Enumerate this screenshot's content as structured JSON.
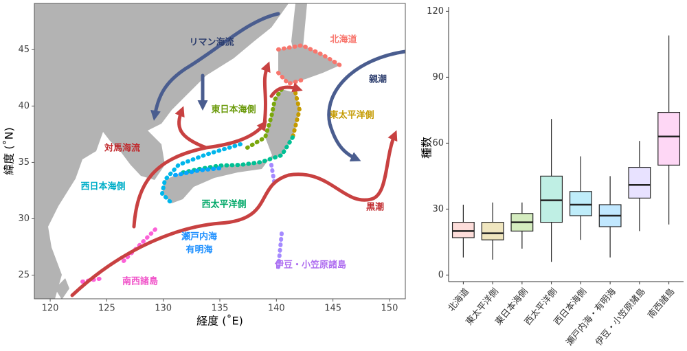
{
  "chart_data": [
    {
      "type": "map",
      "x_label": "経度 (˚E)",
      "y_label": "緯度 (˚N)",
      "xlim": [
        118.6,
        151.4
      ],
      "ylim": [
        22.9,
        49.1
      ],
      "xticks": [
        120,
        125,
        130,
        135,
        140,
        145,
        150
      ],
      "yticks": [
        25,
        30,
        35,
        40,
        45
      ],
      "annotations": [
        {
          "text": "リマン海流",
          "color": "#2d3e6e"
        },
        {
          "text": "親潮",
          "color": "#2d3e6e"
        },
        {
          "text": "対馬海流",
          "color": "#c0282c"
        },
        {
          "text": "黒潮",
          "color": "#c0282c"
        },
        {
          "text": "北海道",
          "color": "#f8766d"
        },
        {
          "text": "東日本海側",
          "color": "#6a9a0a"
        },
        {
          "text": "東太平洋側",
          "color": "#c49a00"
        },
        {
          "text": "西日本海側",
          "color": "#00aec8"
        },
        {
          "text": "西太平洋側",
          "color": "#00a868"
        },
        {
          "text": [
            "瀬戸内海",
            "有明海"
          ],
          "color": "#1e90ff"
        },
        {
          "text": "伊豆・小笠原諸島",
          "color": "#b070f0"
        },
        {
          "text": "南西諸島",
          "color": "#f050c8"
        }
      ]
    },
    {
      "type": "box",
      "y_label": "種数",
      "ylim": [
        -3,
        122
      ],
      "yticks": [
        0,
        30,
        60,
        90,
        120
      ],
      "categories": [
        "北海道",
        "東太平洋側",
        "東日本海側",
        "西太平洋側",
        "西日本海側",
        "瀬戸内海・有明海",
        "伊豆・小笠原諸島",
        "南西諸島"
      ],
      "colors": [
        "#f8766d",
        "#c49a00",
        "#53b400",
        "#00c094",
        "#00b6eb",
        "#06a4ff",
        "#a58aff",
        "#fb61d7"
      ],
      "min": [
        8,
        7,
        12,
        6,
        16,
        8,
        20,
        23
      ],
      "q1": [
        17,
        16,
        20,
        24,
        27,
        22,
        35,
        50
      ],
      "median": [
        20,
        19,
        24,
        34,
        32,
        27,
        41,
        63
      ],
      "q3": [
        24,
        24,
        28,
        45,
        38,
        32,
        49,
        74
      ],
      "max": [
        32,
        33,
        33,
        71,
        54,
        45,
        61,
        109
      ]
    }
  ]
}
